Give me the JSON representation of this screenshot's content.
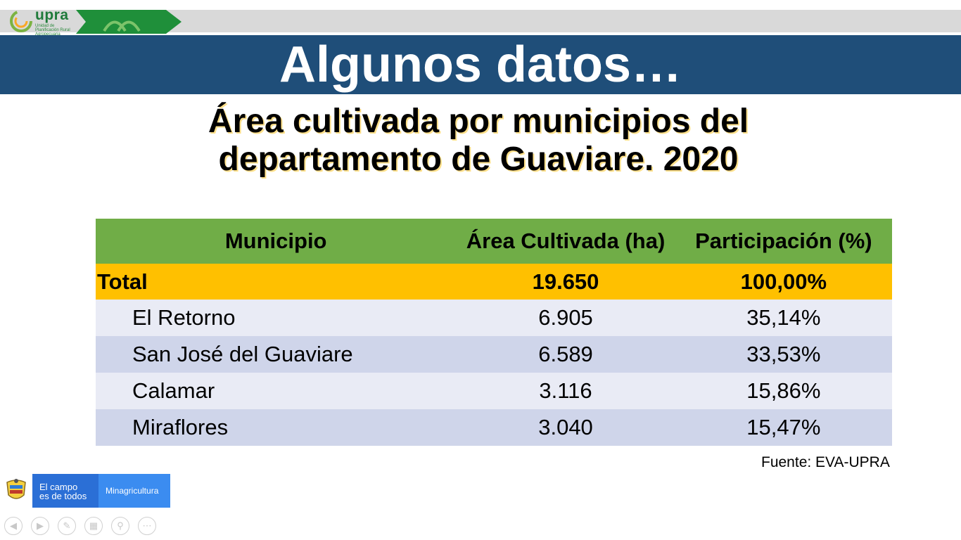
{
  "header": {
    "logo_text": "upra",
    "logo_subtext": "Unidad de Planificación Rural Agropecuaria"
  },
  "slide": {
    "title": "Algunos datos…",
    "subtitle_line1": "Área cultivada por municipios del",
    "subtitle_line2": "departamento de Guaviare. 2020"
  },
  "table": {
    "headers": [
      "Municipio",
      "Área Cultivada (ha)",
      "Participación (%)"
    ],
    "total": {
      "label": "Total",
      "area": "19.650",
      "share": "100,00%"
    },
    "rows": [
      {
        "municipio": "El Retorno",
        "area": "6.905",
        "share": "35,14%"
      },
      {
        "municipio": "San José del Guaviare",
        "area": "6.589",
        "share": "33,53%"
      },
      {
        "municipio": "Calamar",
        "area": "3.116",
        "share": "15,86%"
      },
      {
        "municipio": "Miraflores",
        "area": "3.040",
        "share": "15,47%"
      }
    ]
  },
  "source": "Fuente: EVA-UPRA",
  "footer": {
    "campo_line1": "El campo",
    "campo_line2": "es de todos",
    "ministry": "Minagricultura"
  },
  "nav": {
    "icons": [
      "previous-slide-icon",
      "next-slide-icon",
      "pen-icon",
      "slides-grid-icon",
      "zoom-icon",
      "more-options-icon"
    ]
  },
  "colors": {
    "title_band": "#1f4e79",
    "table_header": "#70ad47",
    "total_row": "#ffc000",
    "row_light": "#e9ebf5",
    "row_dark": "#cfd5ea"
  }
}
